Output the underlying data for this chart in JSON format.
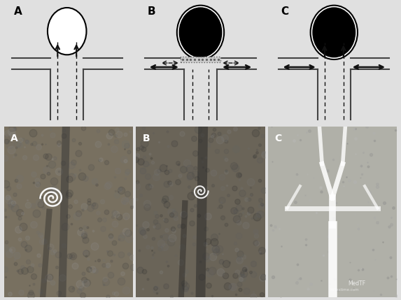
{
  "bg_color": "#e0e0e0",
  "diagram_bg": "#ffffff",
  "panel_labels_top": [
    "A",
    "B",
    "C"
  ],
  "panel_labels_bottom": [
    "A",
    "B",
    "C"
  ],
  "vessel_color": "#444444",
  "arrow_color": "#111111",
  "stent_color": "#888888",
  "photo_A_bg": "#787060",
  "photo_B_bg": "#6a6458",
  "photo_C_bg": "#b0b0a8"
}
